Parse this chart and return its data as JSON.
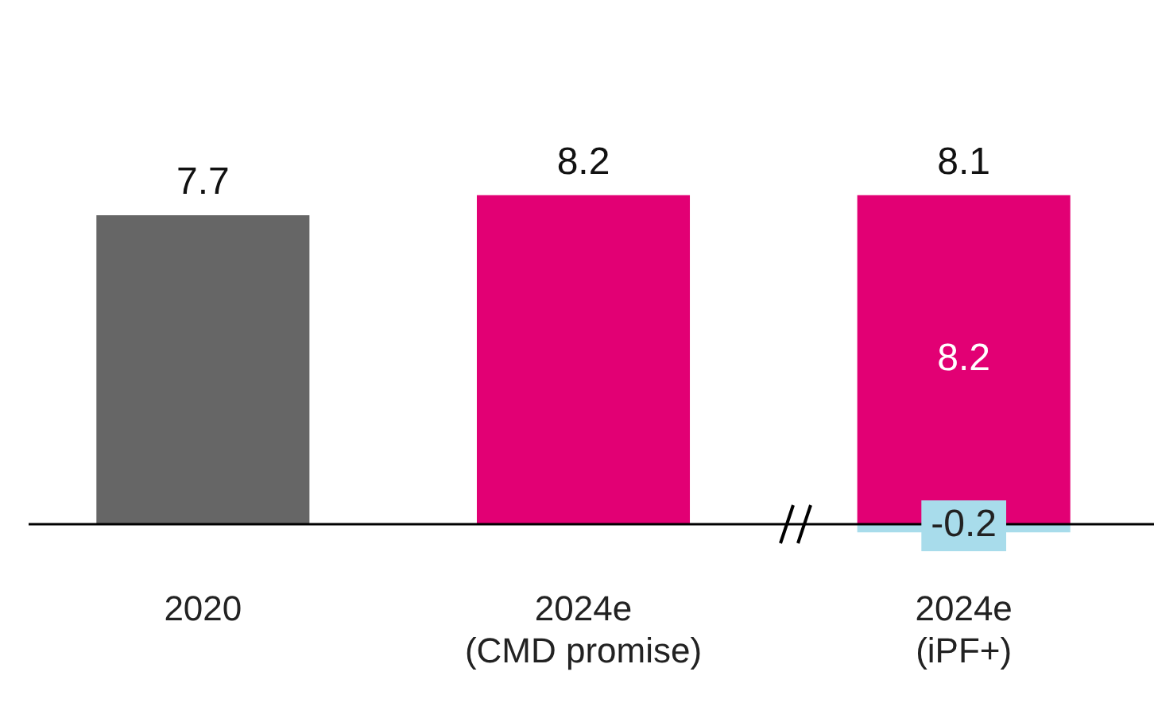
{
  "chart_data": {
    "type": "bar",
    "categories": [
      "2020",
      "2024e\n(CMD promise)",
      "2024e\n(iPF+)"
    ],
    "series": [
      {
        "colors": [
          "#666666",
          "#e20074",
          "#e20074"
        ],
        "values": [
          7.7,
          8.2,
          8.2
        ],
        "value_labels": [
          null,
          null,
          "8.2"
        ]
      },
      {
        "color": "#a8dceb",
        "values": [
          null,
          null,
          -0.2
        ],
        "value_labels": [
          null,
          null,
          "-0.2"
        ]
      }
    ],
    "totals": [
      "7.7",
      "8.2",
      "8.1"
    ]
  }
}
